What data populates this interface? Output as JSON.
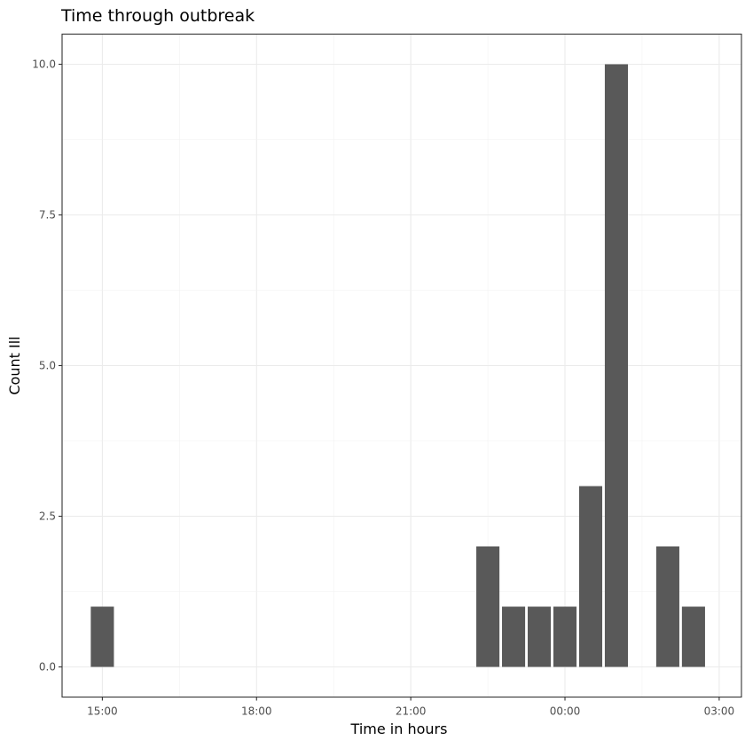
{
  "chart_data": {
    "type": "bar",
    "title": "Time through outbreak",
    "xlabel": "Time in hours",
    "ylabel": "Count Ill",
    "x_unit": "hour",
    "x_tick_labels": [
      "15:00",
      "18:00",
      "21:00",
      "00:00",
      "03:00"
    ],
    "x_ticks": [
      "15:00",
      "18:00",
      "21:00",
      "00:00",
      "03:00"
    ],
    "x_range": [
      "14:13",
      "03:26"
    ],
    "y_ticks": [
      0.0,
      2.5,
      5.0,
      7.5,
      10.0
    ],
    "y_tick_labels": [
      "0.0",
      "2.5",
      "5.0",
      "7.5",
      "10.0"
    ],
    "ylim": [
      -0.5,
      10.5
    ],
    "bars": [
      {
        "x": "15:00",
        "value": 1
      },
      {
        "x": "22:30",
        "value": 2
      },
      {
        "x": "23:00",
        "value": 1
      },
      {
        "x": "23:30",
        "value": 1
      },
      {
        "x": "00:00",
        "value": 1
      },
      {
        "x": "00:30",
        "value": 3
      },
      {
        "x": "01:00",
        "value": 10
      },
      {
        "x": "02:00",
        "value": 2
      },
      {
        "x": "02:30",
        "value": 1
      }
    ],
    "bar_color": "#595959",
    "grid": true,
    "theme": "bw"
  }
}
